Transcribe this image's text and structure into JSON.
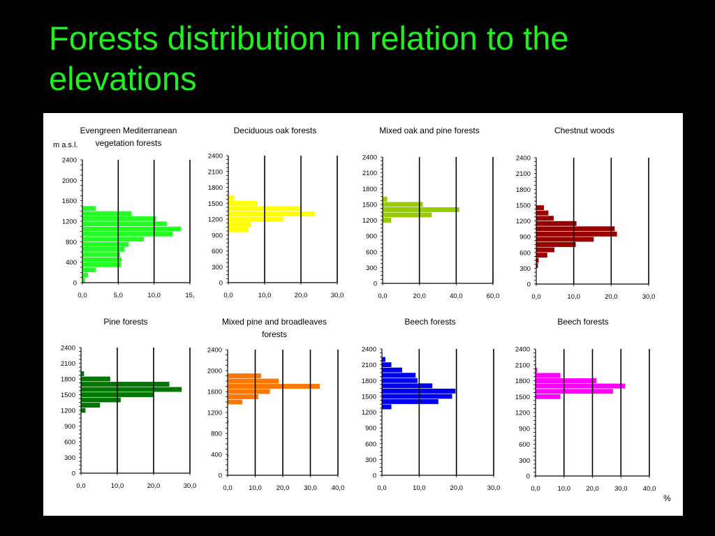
{
  "slide": {
    "title": "Forests distribution in relation to the elevations",
    "title_color": "#22ee22",
    "background": "#000000",
    "panel_background": "#ffffff",
    "y_axis_unit": "m a.s.l.",
    "x_axis_unit": "%"
  },
  "chart_data": [
    {
      "type": "bar",
      "orientation": "horizontal",
      "title": [
        "Evengreen Mediterranean",
        "vegetation forests"
      ],
      "color": "#22ff22",
      "ylim": [
        0,
        2400
      ],
      "yticks": [
        0,
        400,
        800,
        1200,
        1600,
        2000,
        2400
      ],
      "ytick_labels": [
        "0",
        "400",
        "800",
        "1200",
        "1600",
        "2000",
        "2400"
      ],
      "xlim": [
        0,
        15
      ],
      "xticks": [
        0,
        5,
        10,
        15
      ],
      "xtick_labels": [
        "0,0",
        "5,0",
        "10,0",
        "15,"
      ],
      "bands": [
        {
          "from": 0,
          "to": 100,
          "value": 0.4
        },
        {
          "from": 100,
          "to": 200,
          "value": 0.8
        },
        {
          "from": 200,
          "to": 300,
          "value": 1.9
        },
        {
          "from": 300,
          "to": 400,
          "value": 5.4
        },
        {
          "from": 400,
          "to": 500,
          "value": 5.5
        },
        {
          "from": 500,
          "to": 600,
          "value": 5.3
        },
        {
          "from": 600,
          "to": 700,
          "value": 5.9
        },
        {
          "from": 700,
          "to": 800,
          "value": 6.5
        },
        {
          "from": 800,
          "to": 900,
          "value": 8.6
        },
        {
          "from": 900,
          "to": 1000,
          "value": 12.6
        },
        {
          "from": 1000,
          "to": 1100,
          "value": 13.8
        },
        {
          "from": 1100,
          "to": 1200,
          "value": 11.8
        },
        {
          "from": 1200,
          "to": 1300,
          "value": 10.3
        },
        {
          "from": 1300,
          "to": 1400,
          "value": 6.9
        },
        {
          "from": 1400,
          "to": 1500,
          "value": 1.9
        }
      ]
    },
    {
      "type": "bar",
      "orientation": "horizontal",
      "title": [
        "Deciduous oak forests"
      ],
      "color": "#ffff00",
      "ylim": [
        0,
        2400
      ],
      "yticks": [
        0,
        300,
        600,
        900,
        1200,
        1500,
        1800,
        2100,
        2400
      ],
      "ytick_labels": [
        "0",
        "300",
        "600",
        "900",
        "1200",
        "1500",
        "1800",
        "2100",
        "2400"
      ],
      "xlim": [
        0,
        30
      ],
      "xticks": [
        0,
        10,
        20,
        30
      ],
      "xtick_labels": [
        "0,0",
        "10,0",
        "20,0",
        "30,0"
      ],
      "bands": [
        {
          "from": 950,
          "to": 1050,
          "value": 5.6
        },
        {
          "from": 1050,
          "to": 1150,
          "value": 6.2
        },
        {
          "from": 1150,
          "to": 1250,
          "value": 15.3
        },
        {
          "from": 1250,
          "to": 1350,
          "value": 23.9
        },
        {
          "from": 1350,
          "to": 1450,
          "value": 20.1
        },
        {
          "from": 1450,
          "to": 1550,
          "value": 8.0
        },
        {
          "from": 1550,
          "to": 1650,
          "value": 1.6
        }
      ]
    },
    {
      "type": "bar",
      "orientation": "horizontal",
      "title": [
        "Mixed oak and pine forests"
      ],
      "color": "#99cc00",
      "ylim": [
        0,
        2400
      ],
      "yticks": [
        0,
        300,
        600,
        900,
        1200,
        1500,
        1800,
        2100,
        2400
      ],
      "ytick_labels": [
        "0",
        "300",
        "600",
        "900",
        "1200",
        "1500",
        "1800",
        "2100",
        "2400"
      ],
      "xlim": [
        0,
        60
      ],
      "xticks": [
        0,
        20,
        40,
        60
      ],
      "xtick_labels": [
        "0,0",
        "20,0",
        "40,0",
        "60,0"
      ],
      "bands": [
        {
          "from": 1150,
          "to": 1250,
          "value": 4.8
        },
        {
          "from": 1250,
          "to": 1350,
          "value": 26.8
        },
        {
          "from": 1350,
          "to": 1450,
          "value": 41.8
        },
        {
          "from": 1450,
          "to": 1550,
          "value": 22.0
        },
        {
          "from": 1550,
          "to": 1650,
          "value": 2.6
        }
      ]
    },
    {
      "type": "bar",
      "orientation": "horizontal",
      "title": [
        "Chestnut woods"
      ],
      "color": "#990000",
      "ylim": [
        0,
        2400
      ],
      "yticks": [
        0,
        300,
        600,
        900,
        1200,
        1500,
        1800,
        2100,
        2400
      ],
      "ytick_labels": [
        "0",
        "300",
        "600",
        "900",
        "1200",
        "1500",
        "1800",
        "2100",
        "2400"
      ],
      "xlim": [
        0,
        30
      ],
      "xticks": [
        0,
        10,
        20,
        30
      ],
      "xtick_labels": [
        "0,0",
        "10,0",
        "20,0",
        "30,0"
      ],
      "bands": [
        {
          "from": 300,
          "to": 400,
          "value": 0.5
        },
        {
          "from": 400,
          "to": 500,
          "value": 0.7
        },
        {
          "from": 500,
          "to": 600,
          "value": 3.0
        },
        {
          "from": 600,
          "to": 700,
          "value": 4.9
        },
        {
          "from": 700,
          "to": 800,
          "value": 10.6
        },
        {
          "from": 800,
          "to": 900,
          "value": 15.4
        },
        {
          "from": 900,
          "to": 1000,
          "value": 21.6
        },
        {
          "from": 1000,
          "to": 1100,
          "value": 21.0
        },
        {
          "from": 1100,
          "to": 1200,
          "value": 10.8
        },
        {
          "from": 1200,
          "to": 1300,
          "value": 4.7
        },
        {
          "from": 1300,
          "to": 1400,
          "value": 3.3
        },
        {
          "from": 1400,
          "to": 1500,
          "value": 2.1
        }
      ]
    },
    {
      "type": "bar",
      "orientation": "horizontal",
      "title": [
        "Pine forests"
      ],
      "color": "#007700",
      "ylim": [
        0,
        2400
      ],
      "yticks": [
        0,
        300,
        600,
        900,
        1200,
        1500,
        1800,
        2100,
        2400
      ],
      "ytick_labels": [
        "0",
        "300",
        "600",
        "900",
        "1200",
        "1500",
        "1800",
        "2100",
        "2400"
      ],
      "xlim": [
        0,
        30
      ],
      "xticks": [
        0,
        10,
        20,
        30
      ],
      "xtick_labels": [
        "0,0",
        "10,0",
        "20,0",
        "30,0"
      ],
      "bands": [
        {
          "from": 1150,
          "to": 1250,
          "value": 1.3
        },
        {
          "from": 1250,
          "to": 1350,
          "value": 5.3
        },
        {
          "from": 1350,
          "to": 1450,
          "value": 11.0
        },
        {
          "from": 1450,
          "to": 1550,
          "value": 20.1
        },
        {
          "from": 1550,
          "to": 1650,
          "value": 27.8
        },
        {
          "from": 1650,
          "to": 1750,
          "value": 24.4
        },
        {
          "from": 1750,
          "to": 1850,
          "value": 8.1
        },
        {
          "from": 1850,
          "to": 1950,
          "value": 0.9
        }
      ]
    },
    {
      "type": "bar",
      "orientation": "horizontal",
      "title": [
        "Mixed pine and broadleaves",
        "forests"
      ],
      "color": "#ff7700",
      "ylim": [
        0,
        2400
      ],
      "yticks": [
        0,
        400,
        800,
        1200,
        1600,
        2000,
        2400
      ],
      "ytick_labels": [
        "0",
        "400",
        "800",
        "1200",
        "1600",
        "2000",
        "2400"
      ],
      "xlim": [
        0,
        40
      ],
      "xticks": [
        0,
        10,
        20,
        30,
        40
      ],
      "xtick_labels": [
        "0,0",
        "10,0",
        "20,0",
        "30,0",
        "40,0"
      ],
      "bands": [
        {
          "from": 350,
          "to": 400,
          "value": 0.5
        },
        {
          "from": 1000,
          "to": 1050,
          "value": 0.5
        },
        {
          "from": 1350,
          "to": 1450,
          "value": 5.4
        },
        {
          "from": 1450,
          "to": 1550,
          "value": 11.2
        },
        {
          "from": 1550,
          "to": 1650,
          "value": 15.4
        },
        {
          "from": 1650,
          "to": 1750,
          "value": 33.5
        },
        {
          "from": 1750,
          "to": 1850,
          "value": 18.6
        },
        {
          "from": 1850,
          "to": 1950,
          "value": 12.2
        }
      ]
    },
    {
      "type": "bar",
      "orientation": "horizontal",
      "title": [
        "Beech forests"
      ],
      "color": "#0000ee",
      "ylim": [
        0,
        2400
      ],
      "yticks": [
        0,
        300,
        600,
        900,
        1200,
        1500,
        1800,
        2100,
        2400
      ],
      "ytick_labels": [
        "0",
        "300",
        "600",
        "900",
        "1200",
        "1500",
        "1800",
        "2100",
        "2400"
      ],
      "xlim": [
        0,
        30
      ],
      "xticks": [
        0,
        10,
        20,
        30
      ],
      "xtick_labels": [
        "0,0",
        "10,0",
        "20,0",
        "30,0"
      ],
      "bands": [
        {
          "from": 1250,
          "to": 1350,
          "value": 2.6
        },
        {
          "from": 1350,
          "to": 1450,
          "value": 15.2
        },
        {
          "from": 1450,
          "to": 1550,
          "value": 18.9
        },
        {
          "from": 1550,
          "to": 1650,
          "value": 19.8
        },
        {
          "from": 1650,
          "to": 1750,
          "value": 13.6
        },
        {
          "from": 1750,
          "to": 1850,
          "value": 9.6
        },
        {
          "from": 1850,
          "to": 1950,
          "value": 9.1
        },
        {
          "from": 1950,
          "to": 2050,
          "value": 5.5
        },
        {
          "from": 2050,
          "to": 2150,
          "value": 2.6
        },
        {
          "from": 2150,
          "to": 2250,
          "value": 1.0
        }
      ]
    },
    {
      "type": "bar",
      "orientation": "horizontal",
      "title": [
        "Beech forests"
      ],
      "color": "#ff00ff",
      "ylim": [
        0,
        2400
      ],
      "yticks": [
        0,
        300,
        600,
        900,
        1200,
        1500,
        1800,
        2100,
        2400
      ],
      "ytick_labels": [
        "0",
        "300",
        "600",
        "900",
        "1200",
        "1500",
        "1800",
        "2100",
        "2400"
      ],
      "xlim": [
        0,
        40
      ],
      "xticks": [
        0,
        10,
        20,
        30,
        40
      ],
      "xtick_labels": [
        "0,0",
        "10,0",
        "20,0",
        "30,0",
        "40,0"
      ],
      "bands": [
        {
          "from": 1450,
          "to": 1550,
          "value": 8.8
        },
        {
          "from": 1550,
          "to": 1650,
          "value": 27.3
        },
        {
          "from": 1650,
          "to": 1750,
          "value": 31.5
        },
        {
          "from": 1750,
          "to": 1850,
          "value": 21.5
        },
        {
          "from": 1850,
          "to": 1950,
          "value": 8.8
        },
        {
          "from": 1950,
          "to": 2050,
          "value": 0.6
        }
      ]
    }
  ]
}
